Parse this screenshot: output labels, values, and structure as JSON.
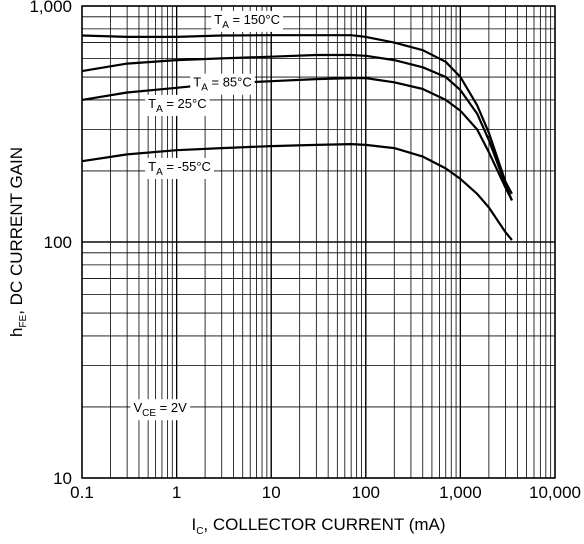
{
  "chart_data": {
    "type": "line",
    "scale": {
      "x": "log",
      "y": "log"
    },
    "grid": true,
    "xlim": [
      0.1,
      10000
    ],
    "ylim": [
      10,
      1000
    ],
    "x_ticks": [
      {
        "value": 0.1,
        "label": "0.1"
      },
      {
        "value": 1,
        "label": "1"
      },
      {
        "value": 10,
        "label": "10"
      },
      {
        "value": 100,
        "label": "100"
      },
      {
        "value": 1000,
        "label": "1,000"
      },
      {
        "value": 10000,
        "label": "10,000"
      }
    ],
    "y_ticks": [
      {
        "value": 10,
        "label": "10"
      },
      {
        "value": 100,
        "label": "100"
      },
      {
        "value": 1000,
        "label": "1,000"
      }
    ],
    "xlabel": {
      "main": "I",
      "sub": "C",
      "rest": ", COLLECTOR CURRENT (mA)"
    },
    "ylabel": {
      "main": "h",
      "sub": "FE",
      "rest": ", DC CURRENT GAIN"
    },
    "series": [
      {
        "name": "TA = 150°C",
        "label": {
          "main": "T",
          "sub": "A",
          "rest": " = 150°C"
        },
        "x": [
          0.1,
          0.3,
          1,
          3,
          10,
          30,
          70,
          100,
          200,
          400,
          700,
          1000,
          1500,
          2000,
          3000,
          3500
        ],
        "y": [
          750,
          740,
          740,
          750,
          752,
          752,
          752,
          740,
          700,
          650,
          580,
          500,
          380,
          290,
          180,
          160
        ]
      },
      {
        "name": "TA = 85°C",
        "label": {
          "main": "T",
          "sub": "A",
          "rest": " = 85°C"
        },
        "x": [
          0.1,
          0.3,
          1,
          3,
          10,
          30,
          70,
          100,
          200,
          400,
          700,
          1000,
          1500,
          2000,
          3000,
          3500
        ],
        "y": [
          530,
          570,
          590,
          600,
          610,
          620,
          620,
          615,
          590,
          550,
          500,
          440,
          350,
          270,
          175,
          150
        ]
      },
      {
        "name": "TA = 25°C",
        "label": {
          "main": "T",
          "sub": "A",
          "rest": " = 25°C"
        },
        "x": [
          0.1,
          0.3,
          1,
          3,
          10,
          30,
          70,
          100,
          200,
          400,
          700,
          1000,
          1500,
          2000,
          3000,
          3500
        ],
        "y": [
          400,
          430,
          450,
          470,
          480,
          490,
          495,
          495,
          475,
          445,
          400,
          360,
          300,
          240,
          170,
          150
        ]
      },
      {
        "name": "TA = -55°C",
        "label": {
          "main": "T",
          "sub": "A",
          "rest": " = -55°C"
        },
        "x": [
          0.1,
          0.3,
          1,
          3,
          10,
          30,
          70,
          100,
          200,
          400,
          700,
          1000,
          1500,
          2000,
          3000,
          3500
        ],
        "y": [
          220,
          235,
          245,
          250,
          255,
          258,
          260,
          258,
          250,
          230,
          205,
          185,
          160,
          140,
          110,
          102
        ]
      }
    ],
    "annotations": [
      {
        "main": "V",
        "sub": "CE",
        "rest": " = 2V",
        "x": 0.35,
        "y": 19
      }
    ]
  }
}
